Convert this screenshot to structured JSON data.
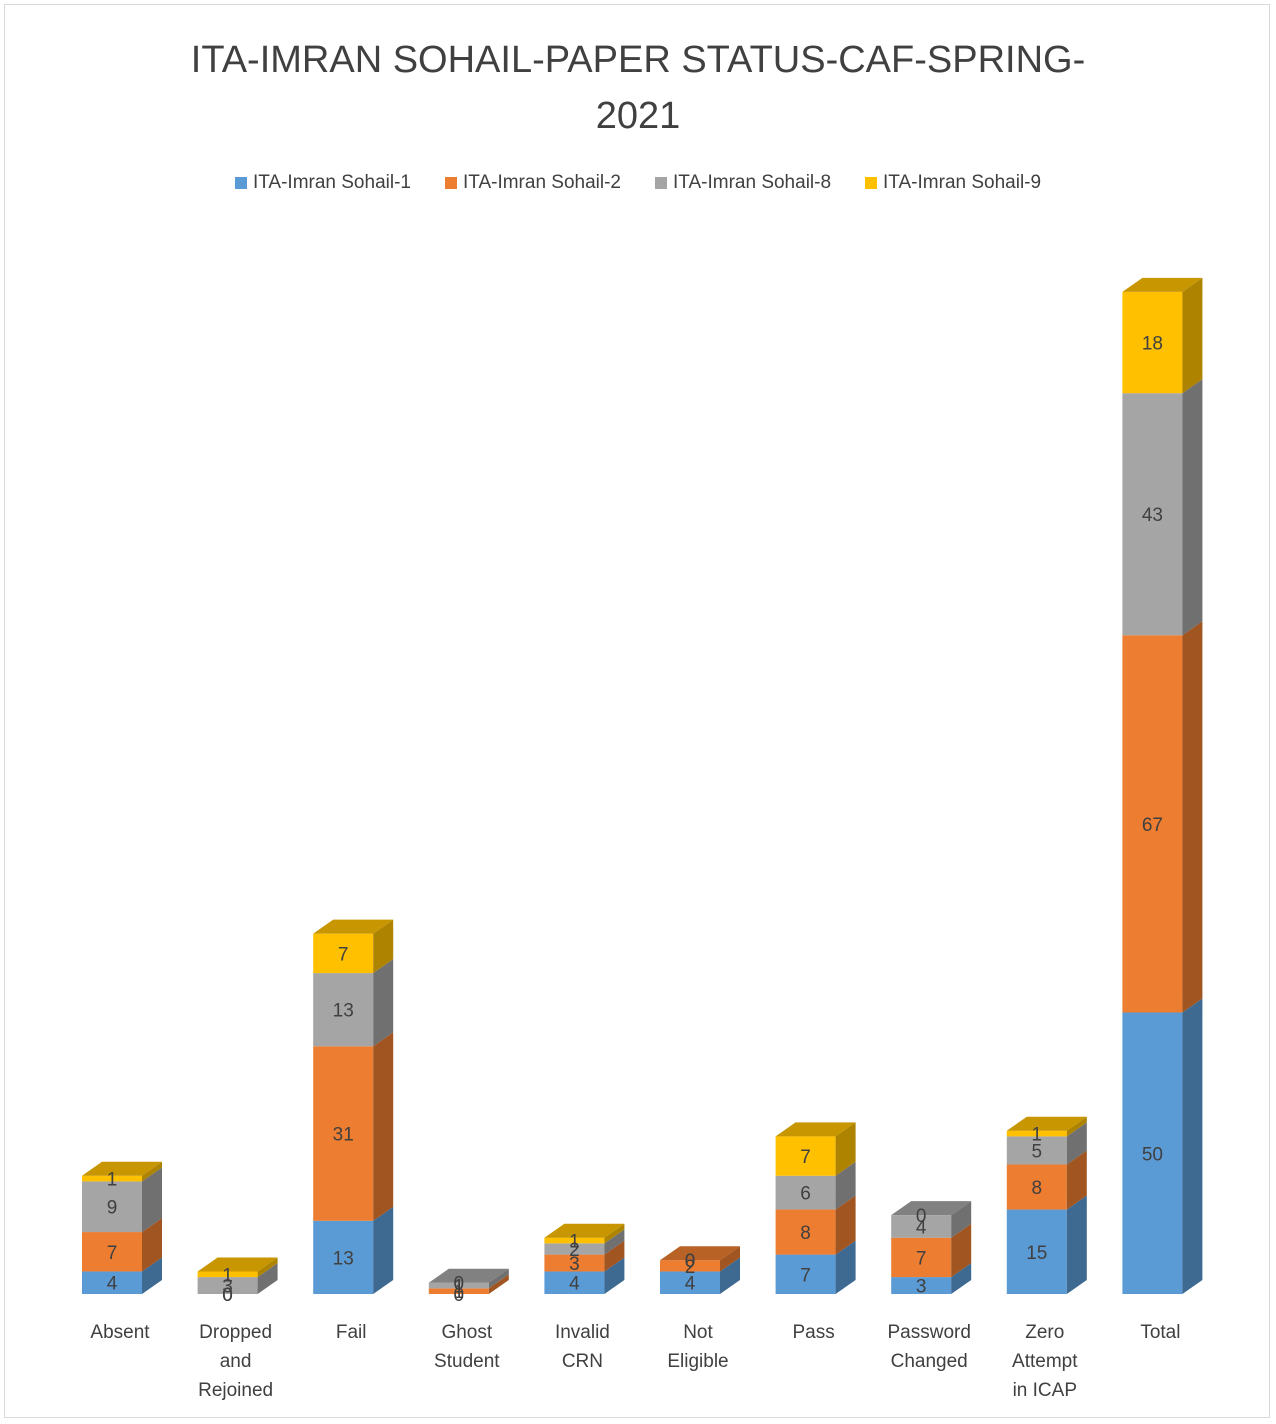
{
  "colors": {
    "series": [
      "#5b9bd5",
      "#ed7d31",
      "#a5a5a5",
      "#ffc000"
    ],
    "text": "#404040",
    "background": "#ffffff"
  },
  "chart_data": {
    "type": "bar",
    "stacked": true,
    "three_d": true,
    "title_lines": [
      "ITA-IMRAN SOHAIL-PAPER STATUS-CAF-SPRING-",
      "2021"
    ],
    "legend_position": "top",
    "grid": false,
    "categories": [
      [
        "Absent"
      ],
      [
        "Dropped",
        "and",
        "Rejoined"
      ],
      [
        "Fail"
      ],
      [
        "Ghost",
        "Student"
      ],
      [
        "Invalid",
        "CRN"
      ],
      [
        "Not",
        "Eligible"
      ],
      [
        "Pass"
      ],
      [
        "Password",
        "Changed"
      ],
      [
        "Zero",
        "Attempt",
        "in ICAP"
      ],
      [
        "Total"
      ]
    ],
    "series": [
      {
        "name": "ITA-Imran Sohail-1",
        "values": [
          4,
          0,
          13,
          0,
          4,
          4,
          7,
          3,
          15,
          50
        ]
      },
      {
        "name": "ITA-Imran Sohail-2",
        "values": [
          7,
          0,
          31,
          1,
          3,
          2,
          8,
          7,
          8,
          67
        ]
      },
      {
        "name": "ITA-Imran Sohail-8",
        "values": [
          9,
          3,
          13,
          1,
          2,
          0,
          6,
          4,
          5,
          43
        ]
      },
      {
        "name": "ITA-Imran Sohail-9",
        "values": [
          1,
          1,
          7,
          0,
          1,
          0,
          7,
          0,
          1,
          18
        ]
      }
    ],
    "ylim": [
      0,
      180
    ]
  }
}
